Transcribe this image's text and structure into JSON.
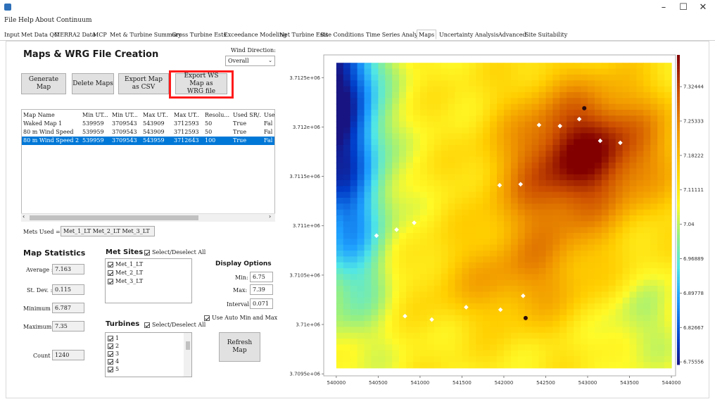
{
  "menu": [
    "File",
    "Help",
    "About Continuum"
  ],
  "tabs": [
    "Input",
    "Met Data QC",
    "MERRA2 Data",
    "MCP",
    "Met & Turbine Summary",
    "Gross Turbine Ests.",
    "Exceedance Modeling",
    "Net Turbine Ests",
    "Site Conditions",
    "Time Series Analysis",
    "Maps",
    "Uncertainty Analysis",
    "Advanced",
    "Site Suitability"
  ],
  "active_tab": "Maps",
  "window": {
    "min": "–",
    "max": "☐",
    "close": "✕"
  },
  "maps": {
    "title": "Maps & WRG File Creation",
    "wind_direction_label": "Wind Direction:",
    "wind_direction_value": "Overall",
    "buttons": {
      "generate": "Generate Map",
      "delete": "Delete Maps",
      "export_csv": "Export Map as CSV",
      "export_wrg": "Export WS Map as WRG file"
    },
    "columns": [
      "Map Name",
      "Min UT...",
      "Min UT...",
      "Max UT...",
      "Max UT...",
      "Resolu...",
      "Used SR/...",
      "Use"
    ],
    "rows": [
      [
        "Waked Map 1",
        "539959",
        "3709543",
        "543909",
        "3712593",
        "50",
        "True",
        "Fal"
      ],
      [
        "80 m Wind Speed",
        "539959",
        "3709543",
        "543909",
        "3712593",
        "50",
        "True",
        "Fal"
      ],
      [
        "80 m Wind Speed 2",
        "539959",
        "3709543",
        "543959",
        "3712643",
        "100",
        "True",
        "Fal"
      ]
    ],
    "selected_row": 2,
    "mets_used_label": "Mets Used =",
    "mets_used_value": "Met_1_LT Met_2_LT Met_3_LT"
  },
  "stats": {
    "title": "Map Statistics",
    "average_label": "Average :",
    "average": "7.163",
    "stdev_label": "St. Dev. :",
    "stdev": "0.115",
    "min_label": "Minimum :",
    "min": "6.787",
    "max_label": "Maximum :",
    "max": "7.35",
    "count_label": "Count :",
    "count": "1240"
  },
  "met_sites": {
    "title": "Met Sites",
    "select_all": "Select/Deselect All",
    "items": [
      "Met_1_LT",
      "Met_2_LT",
      "Met_3_LT"
    ]
  },
  "turbines": {
    "title": "Turbines",
    "select_all": "Select/Deselect All",
    "items": [
      "1",
      "2",
      "3",
      "4",
      "5"
    ]
  },
  "display": {
    "title": "Display Options",
    "min_label": "Min:",
    "min": "6.75",
    "max_label": "Max:",
    "max": "7.39",
    "interval_label": "Interval:",
    "interval": "0.071",
    "auto_label": "Use Auto Min and Max",
    "refresh": "Refresh Map"
  },
  "chart_data": {
    "type": "heatmap",
    "x_ticks": [
      "540000",
      "540500",
      "541000",
      "541500",
      "542000",
      "542500",
      "543000",
      "543500",
      "544000"
    ],
    "y_ticks": [
      "3.7125e+06",
      "3.712e+06",
      "3.7115e+06",
      "3.711e+06",
      "3.7105e+06",
      "3.71e+06",
      "3.7095e+06"
    ],
    "colorbar_ticks": [
      "7.32444",
      "7.25333",
      "7.18222",
      "7.11111",
      "7.04",
      "6.96889",
      "6.89778",
      "6.82667",
      "6.75556"
    ],
    "xlim": [
      539850,
      544050
    ],
    "ylim": [
      3709480,
      3712730
    ],
    "color_range": [
      6.75,
      7.39
    ],
    "turbines": [
      {
        "x": 540480,
        "y": 3710900
      },
      {
        "x": 540720,
        "y": 3710960
      },
      {
        "x": 540930,
        "y": 3711030
      },
      {
        "x": 540820,
        "y": 3710085
      },
      {
        "x": 541140,
        "y": 3710050
      },
      {
        "x": 541550,
        "y": 3710175
      },
      {
        "x": 541960,
        "y": 3710150
      },
      {
        "x": 542230,
        "y": 3710290
      },
      {
        "x": 541950,
        "y": 3711410
      },
      {
        "x": 542200,
        "y": 3711420
      },
      {
        "x": 542420,
        "y": 3712020
      },
      {
        "x": 542670,
        "y": 3712010
      },
      {
        "x": 542900,
        "y": 3712080
      },
      {
        "x": 543150,
        "y": 3711860
      },
      {
        "x": 543390,
        "y": 3711840
      }
    ],
    "mets": [
      {
        "x": 542960,
        "y": 3712190
      },
      {
        "x": 542260,
        "y": 3710065
      }
    ]
  }
}
